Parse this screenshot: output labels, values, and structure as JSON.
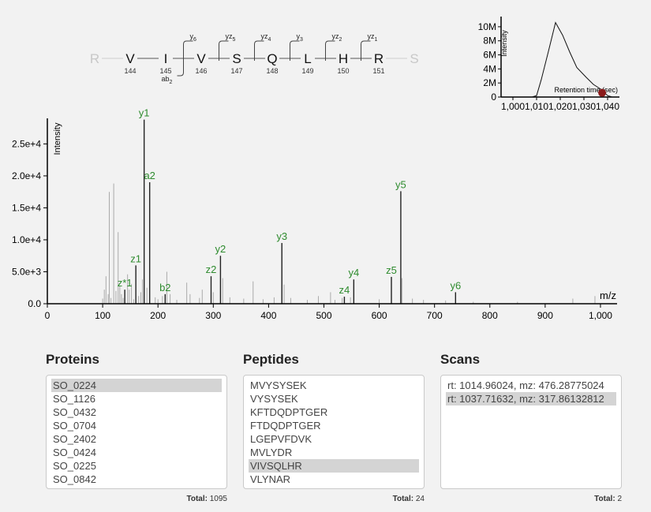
{
  "peptide_map": {
    "residues": [
      {
        "aa": "R",
        "num": "",
        "faded": true
      },
      {
        "aa": "V",
        "num": "144",
        "faded": false
      },
      {
        "aa": "I",
        "num": "145",
        "faded": false
      },
      {
        "aa": "V",
        "num": "146",
        "faded": false
      },
      {
        "aa": "S",
        "num": "147",
        "faded": false
      },
      {
        "aa": "Q",
        "num": "148",
        "faded": false
      },
      {
        "aa": "L",
        "num": "149",
        "faded": false
      },
      {
        "aa": "H",
        "num": "150",
        "faded": false
      },
      {
        "aa": "R",
        "num": "151",
        "faded": false
      },
      {
        "aa": "S",
        "num": "",
        "faded": true
      }
    ],
    "top_ions": [
      {
        "base": "y",
        "sub": "6"
      },
      {
        "base": "yz",
        "sub": "5"
      },
      {
        "base": "yz",
        "sub": "4"
      },
      {
        "base": "y",
        "sub": "3"
      },
      {
        "base": "yz",
        "sub": "2"
      },
      {
        "base": "yz",
        "sub": "1"
      }
    ],
    "bottom_ion": {
      "base": "ab",
      "sub": "2"
    }
  },
  "chromatogram": {
    "ylabel": "Intensity",
    "xlabel": "Retention time (sec)",
    "y_ticks": [
      "0",
      "2M",
      "4M",
      "6M",
      "8M",
      "10M"
    ],
    "x_ticks": [
      "1,000",
      "1,010",
      "1,020",
      "1,030",
      "1,040"
    ],
    "x_range": [
      995,
      1045
    ],
    "y_range": [
      0,
      11000000
    ],
    "trace": [
      [
        1008,
        0
      ],
      [
        1010,
        200000
      ],
      [
        1012,
        2500000
      ],
      [
        1015,
        6500000
      ],
      [
        1018,
        10600000
      ],
      [
        1021,
        8800000
      ],
      [
        1024,
        6400000
      ],
      [
        1027,
        4200000
      ],
      [
        1031,
        2800000
      ],
      [
        1034,
        1800000
      ],
      [
        1037.7,
        1000000
      ],
      [
        1040,
        200000
      ],
      [
        1042,
        0
      ]
    ],
    "marker": [
      1037.7,
      600000
    ],
    "colors": {
      "line": "#111111",
      "marker": "#8b1a1a"
    }
  },
  "spectrum": {
    "type": "bar",
    "ylabel": "Intensity",
    "xlabel": "m/z",
    "x_range": [
      0,
      1030
    ],
    "y_range": [
      0,
      29000
    ],
    "y_ticks": [
      {
        "v": 0,
        "label": "0.0"
      },
      {
        "v": 5000,
        "label": "5.0e+3"
      },
      {
        "v": 10000,
        "label": "1.0e+4"
      },
      {
        "v": 15000,
        "label": "1.5e+4"
      },
      {
        "v": 20000,
        "label": "2.0e+4"
      },
      {
        "v": 25000,
        "label": "2.5e+4"
      }
    ],
    "x_ticks": [
      {
        "v": 0,
        "label": "0"
      },
      {
        "v": 100,
        "label": "100"
      },
      {
        "v": 200,
        "label": "200"
      },
      {
        "v": 300,
        "label": "300"
      },
      {
        "v": 400,
        "label": "400"
      },
      {
        "v": 500,
        "label": "500"
      },
      {
        "v": 600,
        "label": "600"
      },
      {
        "v": 700,
        "label": "700"
      },
      {
        "v": 800,
        "label": "800"
      },
      {
        "v": 900,
        "label": "900"
      },
      {
        "v": 1000,
        "label": "1,000"
      }
    ],
    "annotated_peaks": [
      {
        "mz": 175,
        "intensity": 28800,
        "label": "y1"
      },
      {
        "mz": 185,
        "intensity": 19000,
        "label": "a2"
      },
      {
        "mz": 160,
        "intensity": 6000,
        "label": "z1"
      },
      {
        "mz": 140,
        "intensity": 2200,
        "label": "z*1"
      },
      {
        "mz": 213,
        "intensity": 1500,
        "label": "b2"
      },
      {
        "mz": 296,
        "intensity": 4300,
        "label": "z2"
      },
      {
        "mz": 313,
        "intensity": 7500,
        "label": "y2"
      },
      {
        "mz": 424,
        "intensity": 9500,
        "label": "y3"
      },
      {
        "mz": 537,
        "intensity": 1100,
        "label": "z4"
      },
      {
        "mz": 554,
        "intensity": 3800,
        "label": "y4"
      },
      {
        "mz": 622,
        "intensity": 4200,
        "label": "z5"
      },
      {
        "mz": 639,
        "intensity": 17600,
        "label": "y5"
      },
      {
        "mz": 738,
        "intensity": 1800,
        "label": "y6"
      }
    ],
    "other_peaks": [
      [
        100,
        800
      ],
      [
        103,
        2200
      ],
      [
        106,
        4300
      ],
      [
        110,
        1500
      ],
      [
        112,
        17500
      ],
      [
        115,
        900
      ],
      [
        120,
        18800
      ],
      [
        124,
        2000
      ],
      [
        128,
        11200
      ],
      [
        131,
        2800
      ],
      [
        134,
        1500
      ],
      [
        137,
        900
      ],
      [
        145,
        4600
      ],
      [
        148,
        2200
      ],
      [
        152,
        3100
      ],
      [
        156,
        700
      ],
      [
        165,
        1200
      ],
      [
        169,
        1800
      ],
      [
        172,
        3800
      ],
      [
        180,
        2500
      ],
      [
        195,
        1000
      ],
      [
        200,
        700
      ],
      [
        208,
        1200
      ],
      [
        216,
        5000
      ],
      [
        222,
        1500
      ],
      [
        234,
        600
      ],
      [
        252,
        3300
      ],
      [
        258,
        1500
      ],
      [
        275,
        900
      ],
      [
        280,
        2200
      ],
      [
        300,
        1800
      ],
      [
        317,
        4000
      ],
      [
        330,
        1000
      ],
      [
        355,
        800
      ],
      [
        372,
        3500
      ],
      [
        390,
        700
      ],
      [
        410,
        1000
      ],
      [
        428,
        3000
      ],
      [
        440,
        900
      ],
      [
        470,
        600
      ],
      [
        490,
        1200
      ],
      [
        512,
        1800
      ],
      [
        520,
        600
      ],
      [
        533,
        900
      ],
      [
        548,
        1000
      ],
      [
        600,
        700
      ],
      [
        641,
        4000
      ],
      [
        660,
        800
      ],
      [
        680,
        600
      ],
      [
        720,
        500
      ],
      [
        770,
        300
      ],
      [
        850,
        300
      ],
      [
        950,
        800
      ],
      [
        990,
        1200
      ]
    ],
    "colors": {
      "label": "#2e8b2e",
      "bar": "#222222"
    }
  },
  "panels": {
    "proteins": {
      "title": "Proteins",
      "items": [
        "SO_0224",
        "SO_1126",
        "SO_0432",
        "SO_0704",
        "SO_2402",
        "SO_0424",
        "SO_0225",
        "SO_0842"
      ],
      "selected": 0,
      "total_label": "Total:",
      "total_value": "1095"
    },
    "peptides": {
      "title": "Peptides",
      "items": [
        "MVYSYSEK",
        "VYSYSEK",
        "KFTDQDPTGER",
        "FTDQDPTGER",
        "LGEPVFDVK",
        "MVLYDR",
        "VIVSQLHR",
        "VLYNAR"
      ],
      "selected": 6,
      "total_label": "Total:",
      "total_value": "24"
    },
    "scans": {
      "title": "Scans",
      "items": [
        "rt: 1014.96024, mz: 476.28775024",
        "rt: 1037.71632, mz: 317.86132812"
      ],
      "selected": 1,
      "total_label": "Total:",
      "total_value": "2"
    }
  }
}
